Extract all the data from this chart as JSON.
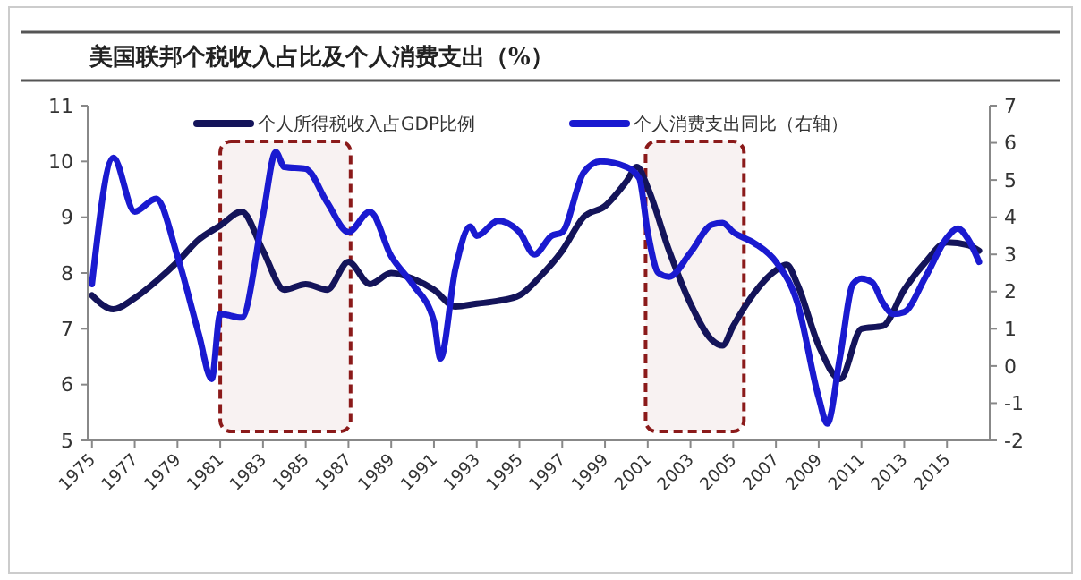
{
  "chart_data": {
    "type": "line",
    "title": "美国联邦个税收入占比及个人消费支出（%）",
    "xlim": [
      1974.8,
      2017
    ],
    "xticks": [
      {
        "value": 1975,
        "label": "1975"
      },
      {
        "value": 1977,
        "label": "1977"
      },
      {
        "value": 1979,
        "label": "1979"
      },
      {
        "value": 1981,
        "label": "1981"
      },
      {
        "value": 1983,
        "label": "1983"
      },
      {
        "value": 1985,
        "label": "1985"
      },
      {
        "value": 1987,
        "label": "1987"
      },
      {
        "value": 1989,
        "label": "1989"
      },
      {
        "value": 1991,
        "label": "1991"
      },
      {
        "value": 1993,
        "label": "1993"
      },
      {
        "value": 1995,
        "label": "1995"
      },
      {
        "value": 1997,
        "label": "1997"
      },
      {
        "value": 1999,
        "label": "1999"
      },
      {
        "value": 2001,
        "label": "2001"
      },
      {
        "value": 2003,
        "label": "2003"
      },
      {
        "value": 2005,
        "label": "2005"
      },
      {
        "value": 2007,
        "label": "2007"
      },
      {
        "value": 2009,
        "label": "2009"
      },
      {
        "value": 2011,
        "label": "2011"
      },
      {
        "value": 2013,
        "label": "2013"
      },
      {
        "value": 2015,
        "label": "2015"
      }
    ],
    "ylim": [
      5,
      11
    ],
    "yticks": [
      5,
      6,
      7,
      8,
      9,
      10,
      11
    ],
    "y2lim": [
      -2,
      7
    ],
    "y2ticks": [
      -2,
      -1,
      0,
      1,
      2,
      3,
      4,
      5,
      6,
      7
    ],
    "legend": "top",
    "grid": false,
    "marker": "none",
    "line_style": "solid",
    "bands": [
      {
        "axis": "x",
        "from": 1981,
        "to": 1987.1,
        "color": "#8b1a1a"
      },
      {
        "axis": "x",
        "from": 2000.9,
        "to": 2005.5,
        "color": "#8b1a1a"
      }
    ],
    "series": [
      {
        "name": "个人所得税收入占GDP比例",
        "color": "#14145a",
        "x": [
          1975,
          1976,
          1977,
          1978,
          1979,
          1980,
          1981,
          1982,
          1983,
          1984,
          1985,
          1986,
          1987,
          1988,
          1989,
          1990,
          1991,
          1992,
          1993,
          1994,
          1995,
          1996,
          1997,
          1998,
          1999,
          2000,
          2000.5,
          2001,
          2002,
          2003,
          2004,
          2004.5,
          2005,
          2006,
          2007,
          2007.5,
          2008,
          2009,
          2010,
          2011,
          2012,
          2013,
          2014,
          2015,
          2016,
          2016.5
        ],
        "values": [
          7.6,
          7.35,
          7.55,
          7.85,
          8.2,
          8.6,
          8.85,
          9.1,
          8.4,
          7.7,
          7.8,
          7.7,
          8.2,
          7.8,
          8.0,
          7.9,
          7.7,
          7.4,
          7.45,
          7.5,
          7.6,
          7.95,
          8.4,
          9.0,
          9.2,
          9.64,
          9.9,
          9.53,
          8.4,
          7.45,
          6.8,
          6.7,
          7.05,
          7.65,
          8.05,
          8.15,
          7.8,
          6.7,
          6.1,
          7.0,
          7.05,
          7.7,
          8.2,
          8.55,
          8.5,
          8.4
        ]
      },
      {
        "name": "个人消费支出同比（右轴）",
        "color": "#1a1ad0",
        "axis": "y2",
        "x": [
          1975,
          1976,
          1977,
          1978,
          1979,
          1980,
          1980.6,
          1981,
          1982,
          1983,
          1983.6,
          1984,
          1985,
          1986,
          1987,
          1988,
          1989,
          1990,
          1991,
          1991.3,
          1992,
          1992.7,
          1993,
          1994,
          1995,
          1995.7,
          1996.5,
          1997,
          1998,
          1998.8,
          2000,
          2000.6,
          2001,
          2001.5,
          2002,
          2003,
          2004,
          2004.5,
          2005,
          2006,
          2007,
          2008,
          2009,
          2009.4,
          2010,
          2010.6,
          2011,
          2011.5,
          2012,
          2012.5,
          2013,
          2014,
          2015,
          2015.5,
          2016,
          2016.5
        ],
        "values": [
          2.2,
          5.6,
          4.15,
          4.5,
          2.95,
          0.85,
          -0.35,
          1.4,
          1.3,
          4.05,
          5.75,
          5.35,
          5.3,
          4.4,
          3.6,
          4.15,
          2.95,
          2.2,
          1.2,
          0.2,
          2.6,
          3.75,
          3.5,
          3.9,
          3.6,
          3.0,
          3.5,
          3.6,
          5.2,
          5.5,
          5.35,
          5.05,
          3.6,
          2.5,
          2.4,
          3.05,
          3.8,
          3.85,
          3.6,
          3.3,
          2.8,
          1.7,
          -0.85,
          -1.55,
          0.25,
          2.2,
          2.35,
          2.25,
          1.7,
          1.4,
          1.45,
          2.4,
          3.45,
          3.7,
          3.4,
          2.8
        ]
      }
    ]
  }
}
